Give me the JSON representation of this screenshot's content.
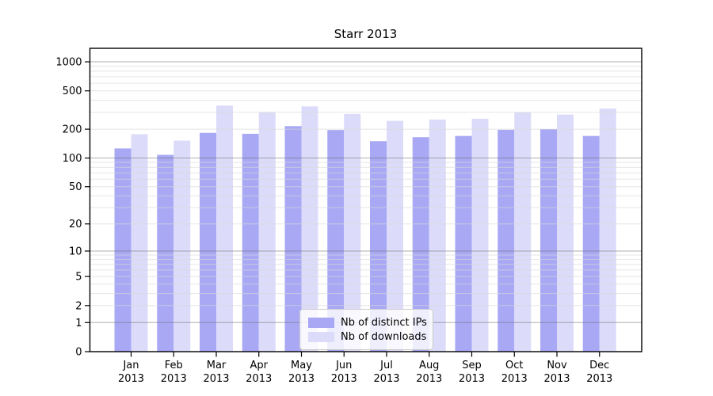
{
  "chart_data": {
    "type": "bar",
    "title": "Starr 2013",
    "categories": [
      "Jan",
      "Feb",
      "Mar",
      "Apr",
      "May",
      "Jun",
      "Jul",
      "Aug",
      "Sep",
      "Oct",
      "Nov",
      "Dec"
    ],
    "year_label": "2013",
    "series": [
      {
        "name": "Nb of distinct IPs",
        "color": "#a8a8f5",
        "values": [
          126,
          108,
          183,
          179,
          215,
          196,
          150,
          165,
          170,
          197,
          200,
          170
        ]
      },
      {
        "name": "Nb of downloads",
        "color": "#dcdcfa",
        "values": [
          177,
          152,
          351,
          300,
          345,
          288,
          244,
          252,
          257,
          298,
          284,
          328
        ]
      }
    ],
    "xlabel": "",
    "ylabel": "",
    "yscale": "log1p",
    "ylim": [
      0,
      1380
    ],
    "yticks": [
      0,
      1,
      2,
      5,
      10,
      20,
      50,
      100,
      200,
      500,
      1000
    ],
    "grid": {
      "major": [
        1,
        10,
        100,
        1000
      ],
      "minor_decades": [
        1,
        10,
        100
      ],
      "minor_per_decade": [
        2,
        3,
        4,
        5,
        6,
        7,
        8,
        9
      ]
    },
    "legend_position": "lower-center"
  },
  "colors": {
    "axis": "#000000",
    "grid_major": "rgba(110,110,110,0.55)",
    "grid_minor": "rgba(215,215,215,0.65)",
    "background": "#ffffff"
  }
}
